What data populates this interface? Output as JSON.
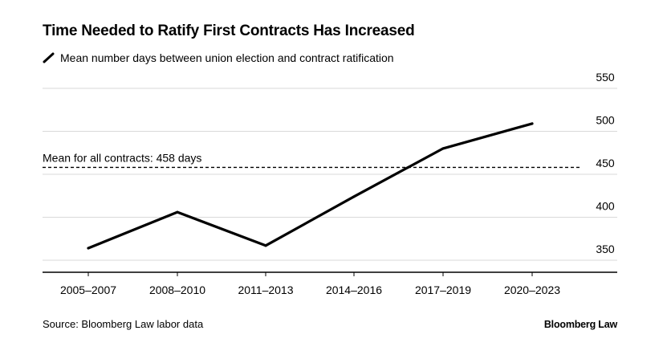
{
  "chart_data": {
    "type": "line",
    "title": "Time Needed to Ratify First Contracts Has Increased",
    "legend": "Mean number days between union election and contract ratification",
    "categories": [
      "2005–2007",
      "2008–2010",
      "2011–2013",
      "2014–2016",
      "2017–2019",
      "2020–2023"
    ],
    "series": [
      {
        "values": [
          364,
          406,
          367,
          424,
          480,
          509
        ]
      }
    ],
    "reference_line": {
      "value": 458,
      "label": "Mean for all contracts: 458 days"
    },
    "y_ticks": [
      350,
      400,
      450,
      500,
      550
    ],
    "ylim": [
      336,
      550
    ],
    "grid": true,
    "y_axis_side": "right",
    "colors": {
      "line": "#000000",
      "grid": "#d9d9d9",
      "axis": "#000000"
    }
  },
  "footer": {
    "source": "Source: Bloomberg Law labor data",
    "brand": "Bloomberg Law"
  }
}
